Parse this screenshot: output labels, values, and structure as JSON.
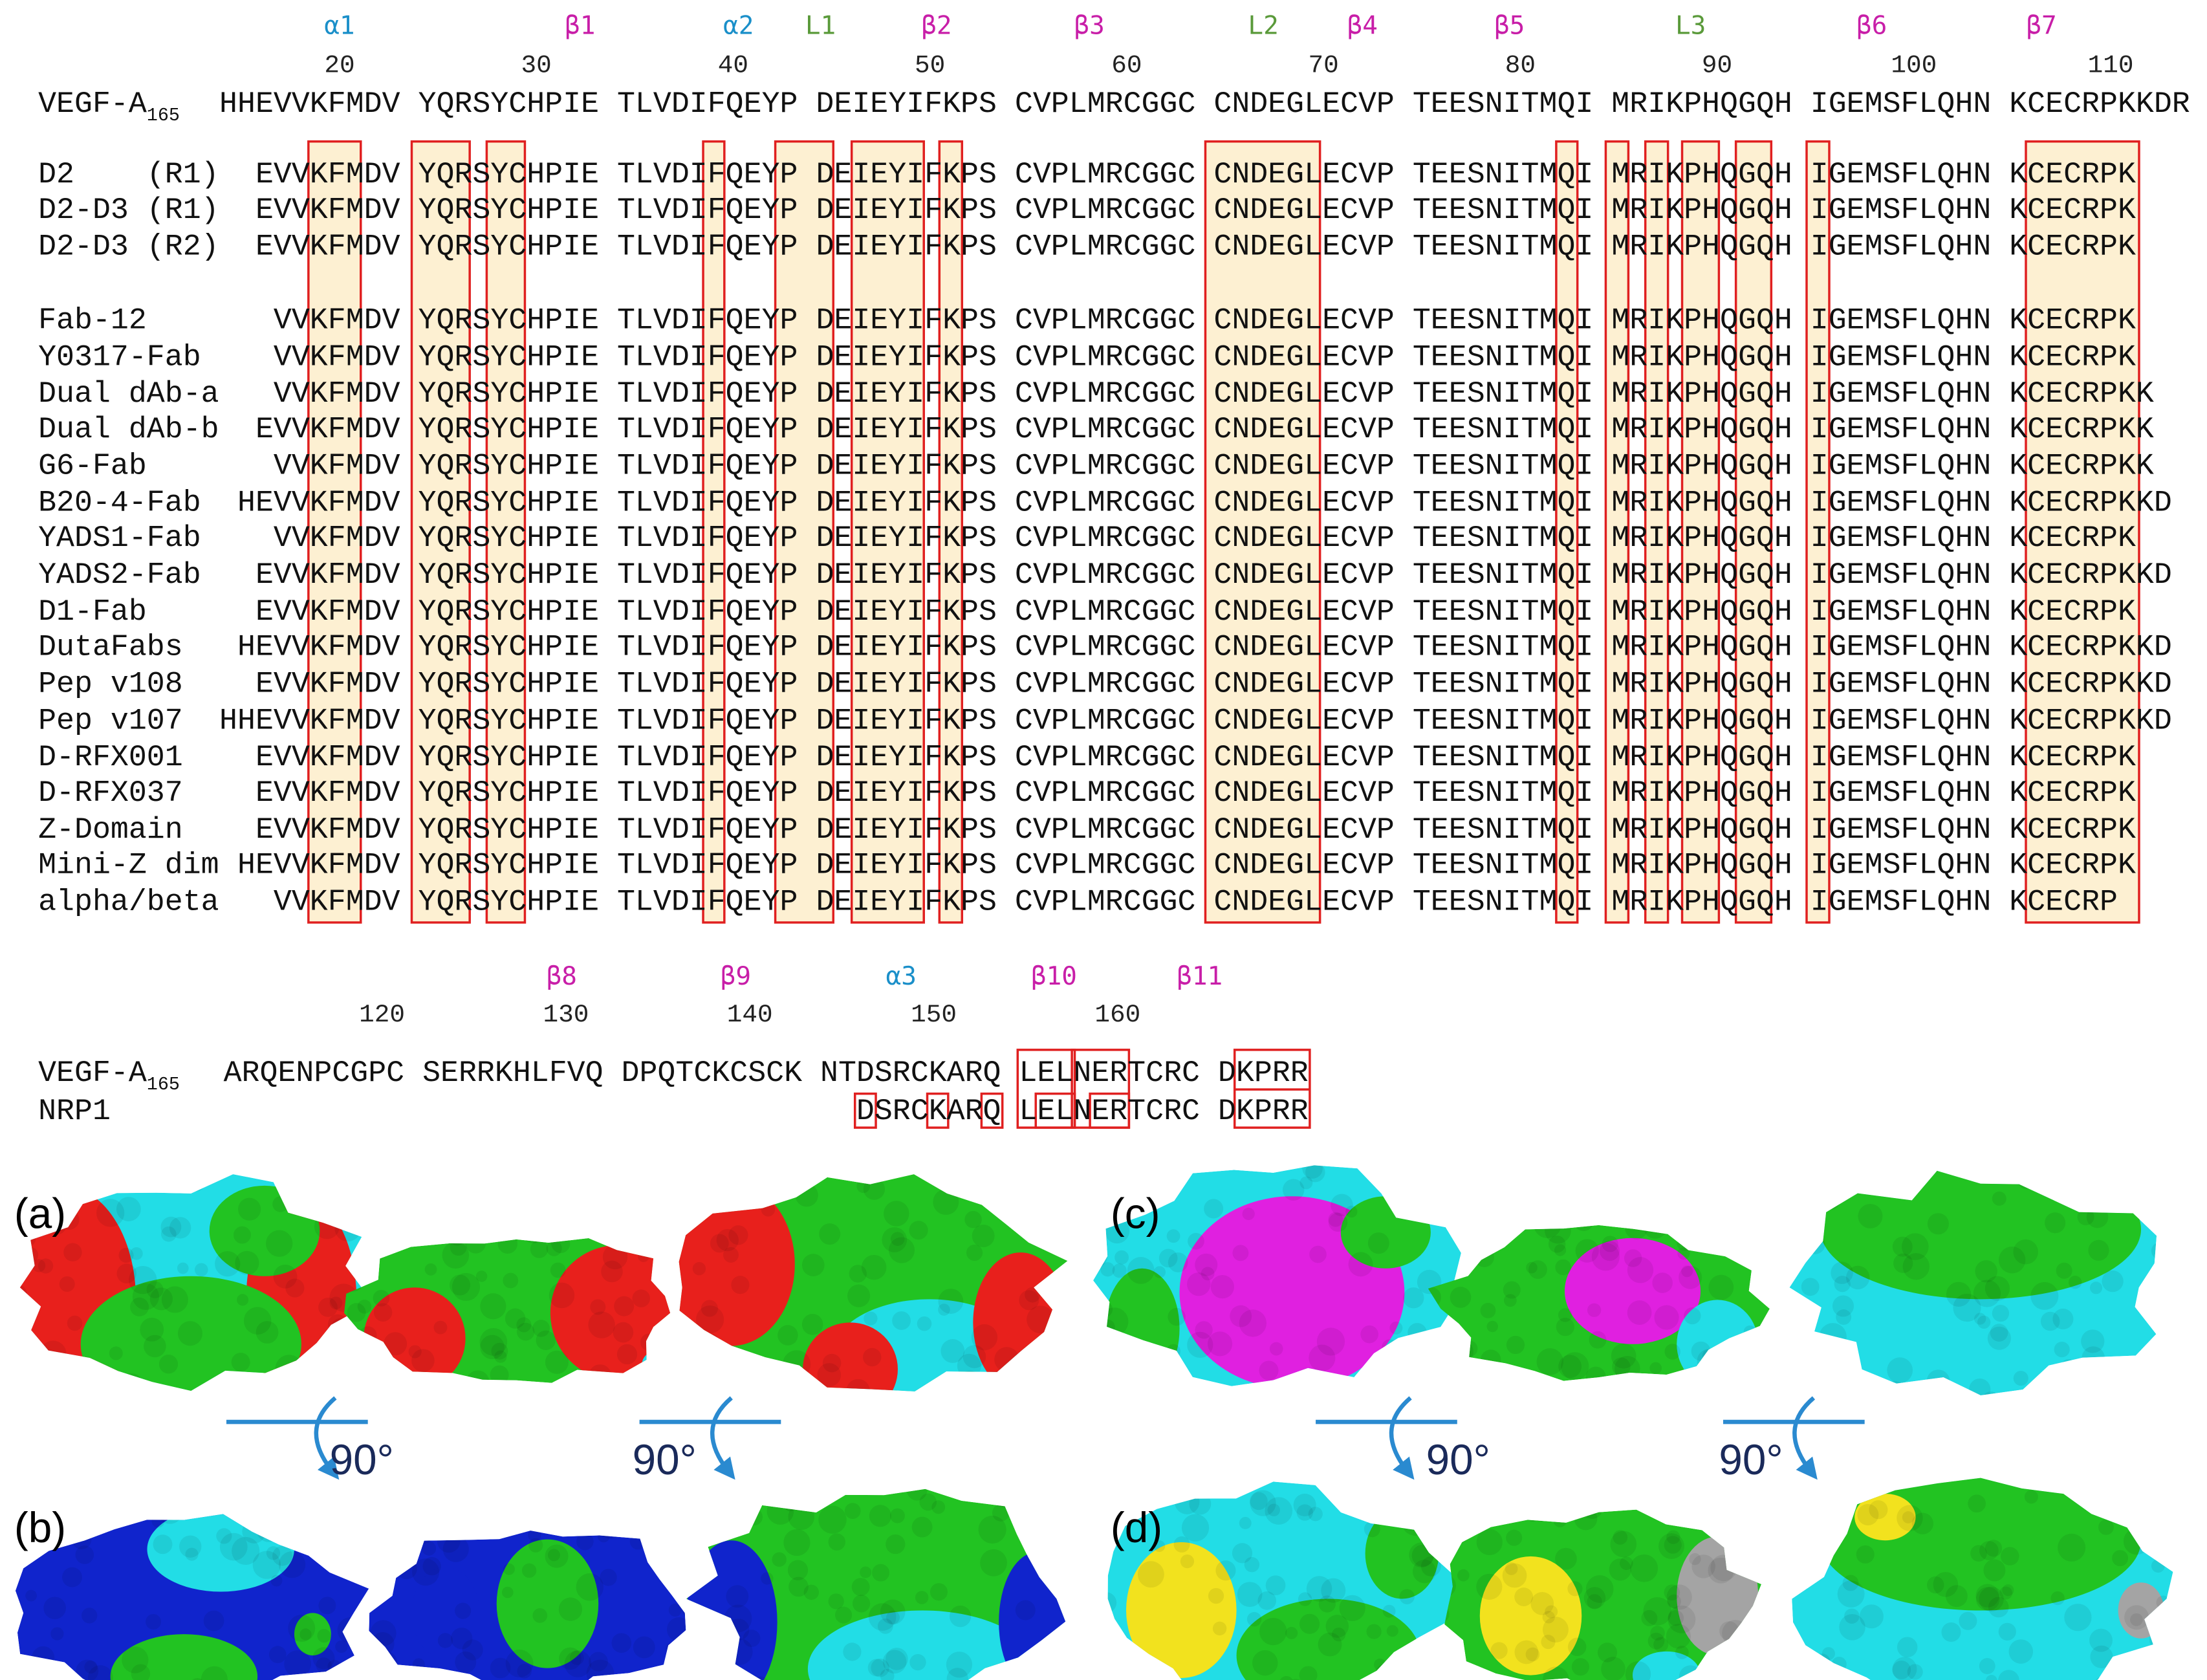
{
  "alignment_top": {
    "structure": [
      {
        "label": "α1",
        "color": "#1a8fc9"
      },
      {
        "label": "β1",
        "color": "#c81ea8"
      },
      {
        "label": "α2",
        "color": "#1a8fc9"
      },
      {
        "label": "L1",
        "color": "#5a9a3a"
      },
      {
        "label": "β2",
        "color": "#c81ea8"
      },
      {
        "label": "β3",
        "color": "#c81ea8"
      },
      {
        "label": "L2",
        "color": "#5a9a3a"
      },
      {
        "label": "β4",
        "color": "#c81ea8"
      },
      {
        "label": "β5",
        "color": "#c81ea8"
      },
      {
        "label": "L3",
        "color": "#5a9a3a"
      },
      {
        "label": "β6",
        "color": "#c81ea8"
      },
      {
        "label": "β7",
        "color": "#c81ea8"
      }
    ],
    "numbers": [
      "20",
      "30",
      "40",
      "50",
      "60",
      "70",
      "80",
      "90",
      "100",
      "110"
    ],
    "reference": {
      "name": "VEGF-A",
      "subscript": "165",
      "sequence": "HHEVVKFMDV YQRSYCHPIE TLVDIFQEYP DEIEYIFKPS CVPLMRCGGC CNDEGLECVP TEESNITMQI MRIKPHQGQH IGEMSFLQHN KCECRPKKDR"
    },
    "rows": [
      {
        "name": "D2    (R1)",
        "sequence": "EVVKFMDV YQRSYCHPIE TLVDIFQEYP DEIEYIFKPS CVPLMRCGGC CNDEGLECVP TEESNITMQI MRIKPHQGQH IGEMSFLQHN KCECRPK"
      },
      {
        "name": "D2-D3 (R1)",
        "sequence": "EVVKFMDV YQRSYCHPIE TLVDIFQEYP DEIEYIFKPS CVPLMRCGGC CNDEGLECVP TEESNITMQI MRIKPHQGQH IGEMSFLQHN KCECRPK"
      },
      {
        "name": "D2-D3 (R2)",
        "sequence": "EVVKFMDV YQRSYCHPIE TLVDIFQEYP DEIEYIFKPS CVPLMRCGGC CNDEGLECVP TEESNITMQI MRIKPHQGQH IGEMSFLQHN KCECRPK"
      },
      {
        "name": "Fab-12",
        "sequence": "VVKFMDV YQRSYCHPIE TLVDIFQEYP DEIEYIFKPS CVPLMRCGGC CNDEGLECVP TEESNITMQI MRIKPHQGQH IGEMSFLQHN KCECRPK"
      },
      {
        "name": "Y0317-Fab",
        "sequence": "VVKFMDV YQRSYCHPIE TLVDIFQEYP DEIEYIFKPS CVPLMRCGGC CNDEGLECVP TEESNITMQI MRIKPHQGQH IGEMSFLQHN KCECRPK"
      },
      {
        "name": "Dual dAb-a",
        "sequence": "VVKFMDV YQRSYCHPIE TLVDIFQEYP DEIEYIFKPS CVPLMRCGGC CNDEGLECVP TEESNITMQI MRIKPHQGQH IGEMSFLQHN KCECRPKK"
      },
      {
        "name": "Dual dAb-b",
        "sequence": "EVVKFMDV YQRSYCHPIE TLVDIFQEYP DEIEYIFKPS CVPLMRCGGC CNDEGLECVP TEESNITMQI MRIKPHQGQH IGEMSFLQHN KCECRPKK"
      },
      {
        "name": "G6-Fab",
        "sequence": "VVKFMDV YQRSYCHPIE TLVDIFQEYP DEIEYIFKPS CVPLMRCGGC CNDEGLECVP TEESNITMQI MRIKPHQGQH IGEMSFLQHN KCECRPKK"
      },
      {
        "name": "B20-4-Fab",
        "sequence": "HEVVKFMDV YQRSYCHPIE TLVDIFQEYP DEIEYIFKPS CVPLMRCGGC CNDEGLECVP TEESNITMQI MRIKPHQGQH IGEMSFLQHN KCECRPKKD"
      },
      {
        "name": "YADS1-Fab",
        "sequence": "VVKFMDV YQRSYCHPIE TLVDIFQEYP DEIEYIFKPS CVPLMRCGGC CNDEGLECVP TEESNITMQI MRIKPHQGQH IGEMSFLQHN KCECRPK"
      },
      {
        "name": "YADS2-Fab",
        "sequence": "EVVKFMDV YQRSYCHPIE TLVDIFQEYP DEIEYIFKPS CVPLMRCGGC CNDEGLECVP TEESNITMQI MRIKPHQGQH IGEMSFLQHN KCECRPKKD"
      },
      {
        "name": "D1-Fab",
        "sequence": "EVVKFMDV YQRSYCHPIE TLVDIFQEYP DEIEYIFKPS CVPLMRCGGC CNDEGLECVP TEESNITMQI MRIKPHQGQH IGEMSFLQHN KCECRPK"
      },
      {
        "name": "DutaFabs",
        "sequence": "HEVVKFMDV YQRSYCHPIE TLVDIFQEYP DEIEYIFKPS CVPLMRCGGC CNDEGLECVP TEESNITMQI MRIKPHQGQH IGEMSFLQHN KCECRPKKD"
      },
      {
        "name": "Pep v108",
        "sequence": "EVVKFMDV YQRSYCHPIE TLVDIFQEYP DEIEYIFKPS CVPLMRCGGC CNDEGLECVP TEESNITMQI MRIKPHQGQH IGEMSFLQHN KCECRPKKD"
      },
      {
        "name": "Pep v107",
        "sequence": "HHEVVKFMDV YQRSYCHPIE TLVDIFQEYP DEIEYIFKPS CVPLMRCGGC CNDEGLECVP TEESNITMQI MRIKPHQGQH IGEMSFLQHN KCECRPKKD"
      },
      {
        "name": "D-RFX001",
        "sequence": "EVVKFMDV YQRSYCHPIE TLVDIFQEYP DEIEYIFKPS CVPLMRCGGC CNDEGLECVP TEESNITMQI MRIKPHQGQH IGEMSFLQHN KCECRPK"
      },
      {
        "name": "D-RFX037",
        "sequence": "EVVKFMDV YQRSYCHPIE TLVDIFQEYP DEIEYIFKPS CVPLMRCGGC CNDEGLECVP TEESNITMQI MRIKPHQGQH IGEMSFLQHN KCECRPK"
      },
      {
        "name": "Z-Domain",
        "sequence": "EVVKFMDV YQRSYCHPIE TLVDIFQEYP DEIEYIFKPS CVPLMRCGGC CNDEGLECVP TEESNITMQI MRIKPHQGQH IGEMSFLQHN KCECRPK"
      },
      {
        "name": "Mini-Z dim",
        "sequence": "HEVVKFMDV YQRSYCHPIE TLVDIFQEYP DEIEYIFKPS CVPLMRCGGC CNDEGLECVP TEESNITMQI MRIKPHQGQH IGEMSFLQHN KCECRPK"
      },
      {
        "name": "alpha/beta",
        "sequence": "VVKFMDV YQRSYCHPIE TLVDIFQEYP DEIEYIFKPS CVPLMRCGGC CNDEGLECVP TEESNITMQI MRIKPHQGQH IGEMSFLQHN KCECRP"
      }
    ]
  },
  "alignment_bottom": {
    "structure": [
      {
        "label": "β8",
        "color": "#c81ea8"
      },
      {
        "label": "β9",
        "color": "#c81ea8"
      },
      {
        "label": "α3",
        "color": "#1a8fc9"
      },
      {
        "label": "β10",
        "color": "#c81ea8"
      },
      {
        "label": "β11",
        "color": "#c81ea8"
      }
    ],
    "numbers": [
      "120",
      "130",
      "140",
      "150",
      "160"
    ],
    "reference": {
      "name": "VEGF-A",
      "subscript": "165",
      "sequence": "ARQENPCGPC SERRKHLFVQ DPQTCKCSCK NTDSRCKARQ LELNERTCRC DKPRR"
    },
    "rows": [
      {
        "name": "NRP1",
        "sequence": "DSRCKARQ LELNERTCRC DKPRR"
      }
    ]
  },
  "panels": [
    "(a)",
    "(b)",
    "(c)",
    "(d)"
  ],
  "rotation_labels": [
    "90°",
    "90°",
    "90°",
    "90°"
  ]
}
